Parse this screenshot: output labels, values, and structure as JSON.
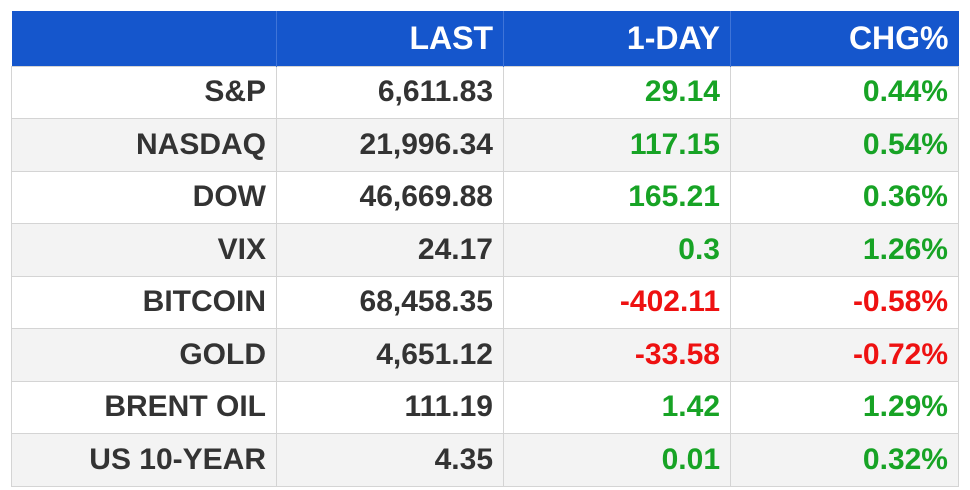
{
  "table": {
    "headers": [
      "",
      "LAST",
      "1-DAY",
      "CHG%"
    ],
    "rows": [
      {
        "name": "S&P",
        "last": "6,611.83",
        "day": "29.14",
        "chg": "0.44%",
        "direction": "up"
      },
      {
        "name": "NASDAQ",
        "last": "21,996.34",
        "day": "117.15",
        "chg": "0.54%",
        "direction": "up"
      },
      {
        "name": "DOW",
        "last": "46,669.88",
        "day": "165.21",
        "chg": "0.36%",
        "direction": "up"
      },
      {
        "name": "VIX",
        "last": "24.17",
        "day": "0.3",
        "chg": "1.26%",
        "direction": "up"
      },
      {
        "name": "BITCOIN",
        "last": "68,458.35",
        "day": "-402.11",
        "chg": "-0.58%",
        "direction": "down"
      },
      {
        "name": "GOLD",
        "last": "4,651.12",
        "day": "-33.58",
        "chg": "-0.72%",
        "direction": "down"
      },
      {
        "name": "BRENT OIL",
        "last": "111.19",
        "day": "1.42",
        "chg": "1.29%",
        "direction": "up"
      },
      {
        "name": "US 10-YEAR",
        "last": "4.35",
        "day": "0.01",
        "chg": "0.32%",
        "direction": "up"
      }
    ]
  },
  "colors": {
    "header_bg": "#1556cc",
    "positive": "#17a325",
    "negative": "#ee1111"
  }
}
